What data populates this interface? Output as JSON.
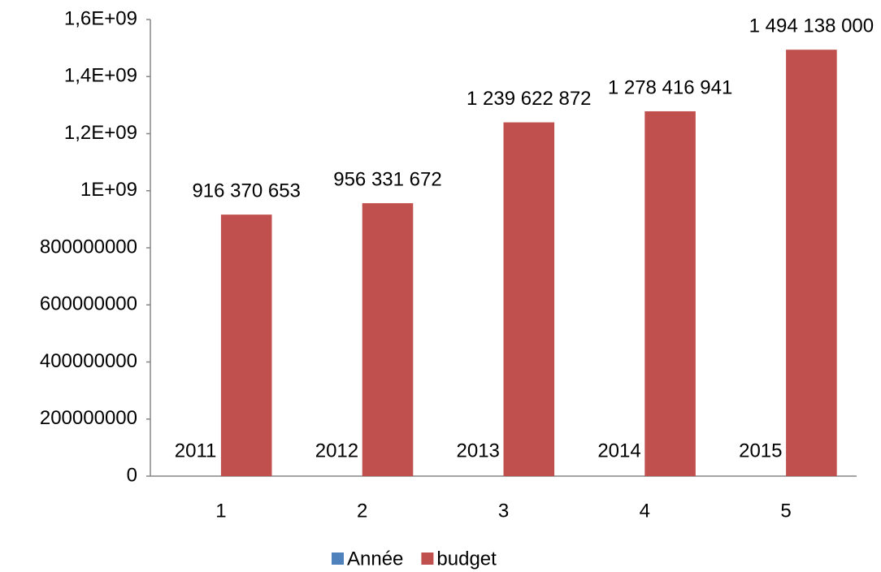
{
  "chart_data": {
    "type": "bar",
    "categories": [
      1,
      2,
      3,
      4,
      5
    ],
    "series": [
      {
        "name": "Année",
        "color": "#4f81bd",
        "values": [
          2011,
          2012,
          2013,
          2014,
          2015
        ]
      },
      {
        "name": "budget",
        "color": "#c0504d",
        "values": [
          916370653,
          956331672,
          1239622872,
          1278416941,
          1494138000
        ],
        "value_labels": [
          "916 370 653",
          "956 331 672",
          "1 239 622 872",
          "1 278 416 941",
          "1 494 138 000"
        ]
      }
    ],
    "ylim": [
      0,
      1600000000
    ],
    "yticks": [
      0,
      200000000,
      400000000,
      600000000,
      800000000,
      {
        "value": 1000000000,
        "label": "1E+09"
      },
      {
        "value": 1200000000,
        "label": "1,2E+09"
      },
      {
        "value": 1400000000,
        "label": "1,4E+09"
      },
      {
        "value": 1600000000,
        "label": "1,6E+09"
      }
    ],
    "grid": false,
    "legend": "bottom"
  }
}
